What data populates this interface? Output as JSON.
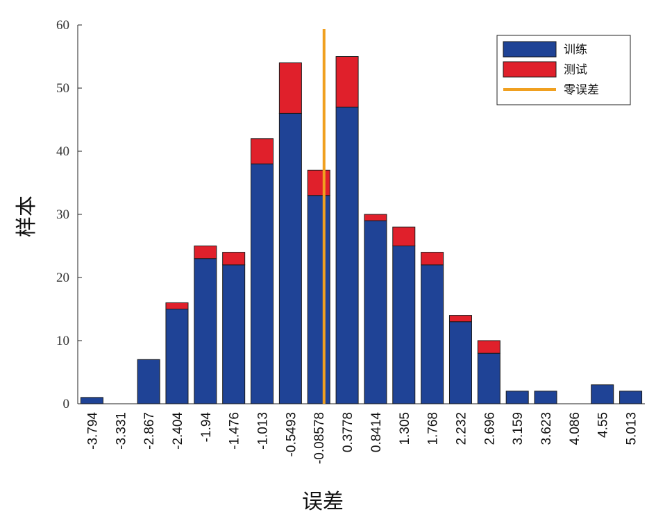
{
  "chart_data": {
    "type": "bar",
    "stacked": true,
    "xlabel": "误差",
    "ylabel": "样本",
    "ylim": [
      0,
      60
    ],
    "yticks": [
      0,
      10,
      20,
      30,
      40,
      50,
      60
    ],
    "categories": [
      "-3.794",
      "-3.331",
      "-2.867",
      "-2.404",
      "-1.94",
      "-1.476",
      "-1.013",
      "-0.5493",
      "-0.08578",
      "0.3778",
      "0.8414",
      "1.305",
      "1.768",
      "2.232",
      "2.696",
      "3.159",
      "3.623",
      "4.086",
      "4.55",
      "5.013"
    ],
    "series": [
      {
        "name": "训练",
        "color": "#1f4396",
        "values": [
          1,
          0,
          7,
          15,
          23,
          22,
          38,
          46,
          33,
          47,
          29,
          25,
          22,
          13,
          8,
          2,
          2,
          0,
          3,
          2
        ]
      },
      {
        "name": "测试",
        "color": "#e0202b",
        "values": [
          0,
          0,
          0,
          1,
          2,
          2,
          4,
          8,
          4,
          8,
          1,
          3,
          2,
          1,
          2,
          0,
          0,
          0,
          0,
          0
        ]
      }
    ],
    "zero_line": {
      "name": "零误差",
      "color": "#f0a020",
      "x": 0
    },
    "legend_position": "top-right",
    "grid": false
  }
}
